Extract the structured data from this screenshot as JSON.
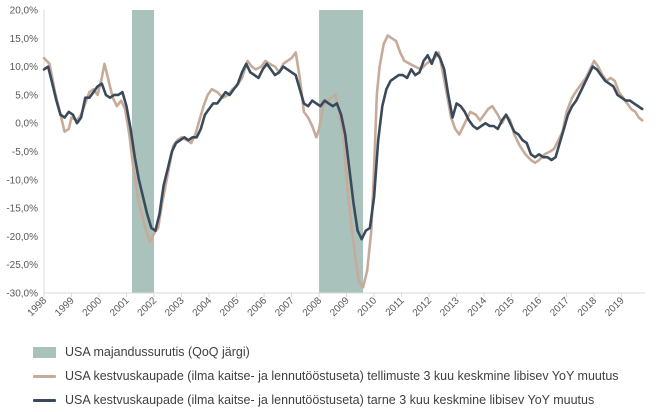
{
  "chart_data": {
    "type": "line",
    "title": "",
    "xlabel": "",
    "ylabel": "",
    "ylim": [
      -30,
      20
    ],
    "yticks": [
      "20,0%",
      "15,0%",
      "10,0%",
      "5,0%",
      "0,0%",
      "-5,0%",
      "-10,0%",
      "-15,0%",
      "-20,0%",
      "-25,0%",
      "-30,0%"
    ],
    "xticks": [
      "1998",
      "1999",
      "2000",
      "2001",
      "2002",
      "2003",
      "2004",
      "2005",
      "2006",
      "2007",
      "2008",
      "2009",
      "2010",
      "2011",
      "2012",
      "2013",
      "2014",
      "2015",
      "2016",
      "2017",
      "2018",
      "2019"
    ],
    "recessions": {
      "name": "USA majandussurutis (QoQ järgi)",
      "color": "#a9c2bc",
      "periods": [
        [
          2001.2,
          2002.0
        ],
        [
          2008.0,
          2009.6
        ]
      ]
    },
    "series": [
      {
        "name": "USA kestvuskaupade (ilma kaitse- ja lennutööstuseta) tellimuste 3 kuu keskmine libisev YoY muutus",
        "color": "#c7ab9a",
        "points": [
          [
            1998.0,
            11.5
          ],
          [
            1998.2,
            10.5
          ],
          [
            1998.4,
            5.5
          ],
          [
            1998.6,
            1.5
          ],
          [
            1998.75,
            -1.5
          ],
          [
            1998.9,
            -1.0
          ],
          [
            1999.0,
            1.0
          ],
          [
            1999.2,
            0.5
          ],
          [
            1999.35,
            1.5
          ],
          [
            1999.5,
            3.5
          ],
          [
            1999.65,
            5.5
          ],
          [
            1999.8,
            6.0
          ],
          [
            1999.95,
            5.0
          ],
          [
            2000.1,
            8.0
          ],
          [
            2000.2,
            10.5
          ],
          [
            2000.35,
            7.5
          ],
          [
            2000.5,
            4.5
          ],
          [
            2000.65,
            3.0
          ],
          [
            2000.8,
            4.0
          ],
          [
            2000.95,
            2.5
          ],
          [
            2001.1,
            -2.0
          ],
          [
            2001.25,
            -8.0
          ],
          [
            2001.45,
            -14.0
          ],
          [
            2001.65,
            -18.0
          ],
          [
            2001.85,
            -21.0
          ],
          [
            2002.0,
            -19.5
          ],
          [
            2002.15,
            -18.5
          ],
          [
            2002.3,
            -14.0
          ],
          [
            2002.5,
            -9.0
          ],
          [
            2002.7,
            -4.0
          ],
          [
            2002.85,
            -3.0
          ],
          [
            2003.0,
            -2.5
          ],
          [
            2003.2,
            -3.0
          ],
          [
            2003.35,
            -3.5
          ],
          [
            2003.5,
            -2.0
          ],
          [
            2003.65,
            0.5
          ],
          [
            2003.8,
            3.0
          ],
          [
            2003.95,
            5.0
          ],
          [
            2004.1,
            6.0
          ],
          [
            2004.3,
            5.5
          ],
          [
            2004.5,
            4.5
          ],
          [
            2004.7,
            5.0
          ],
          [
            2004.85,
            6.0
          ],
          [
            2005.0,
            6.5
          ],
          [
            2005.2,
            8.0
          ],
          [
            2005.4,
            11.0
          ],
          [
            2005.55,
            10.0
          ],
          [
            2005.7,
            9.5
          ],
          [
            2005.9,
            10.0
          ],
          [
            2006.05,
            11.0
          ],
          [
            2006.2,
            10.5
          ],
          [
            2006.4,
            10.0
          ],
          [
            2006.55,
            9.0
          ],
          [
            2006.7,
            10.5
          ],
          [
            2006.85,
            11.0
          ],
          [
            2007.0,
            11.5
          ],
          [
            2007.15,
            12.5
          ],
          [
            2007.3,
            8.0
          ],
          [
            2007.45,
            2.0
          ],
          [
            2007.6,
            1.0
          ],
          [
            2007.75,
            -0.5
          ],
          [
            2007.9,
            -2.5
          ],
          [
            2008.0,
            -1.0
          ],
          [
            2008.15,
            3.0
          ],
          [
            2008.3,
            4.0
          ],
          [
            2008.45,
            4.5
          ],
          [
            2008.6,
            5.0
          ],
          [
            2008.75,
            1.5
          ],
          [
            2008.9,
            -3.0
          ],
          [
            2009.0,
            -10.0
          ],
          [
            2009.15,
            -17.0
          ],
          [
            2009.3,
            -23.0
          ],
          [
            2009.45,
            -28.0
          ],
          [
            2009.6,
            -29.0
          ],
          [
            2009.75,
            -26.0
          ],
          [
            2009.9,
            -19.0
          ],
          [
            2010.0,
            -8.0
          ],
          [
            2010.1,
            5.0
          ],
          [
            2010.2,
            10.0
          ],
          [
            2010.35,
            14.0
          ],
          [
            2010.5,
            15.5
          ],
          [
            2010.65,
            15.0
          ],
          [
            2010.8,
            14.5
          ],
          [
            2010.95,
            12.5
          ],
          [
            2011.1,
            11.0
          ],
          [
            2011.3,
            10.5
          ],
          [
            2011.5,
            10.0
          ],
          [
            2011.7,
            9.5
          ],
          [
            2011.9,
            10.5
          ],
          [
            2012.05,
            11.0
          ],
          [
            2012.2,
            11.5
          ],
          [
            2012.35,
            12.5
          ],
          [
            2012.5,
            9.0
          ],
          [
            2012.65,
            5.0
          ],
          [
            2012.8,
            1.0
          ],
          [
            2012.95,
            -1.0
          ],
          [
            2013.1,
            -2.0
          ],
          [
            2013.3,
            0.0
          ],
          [
            2013.5,
            2.0
          ],
          [
            2013.7,
            1.5
          ],
          [
            2013.85,
            0.5
          ],
          [
            2014.0,
            1.5
          ],
          [
            2014.15,
            2.5
          ],
          [
            2014.3,
            3.0
          ],
          [
            2014.5,
            1.5
          ],
          [
            2014.65,
            0.0
          ],
          [
            2014.8,
            1.5
          ],
          [
            2014.95,
            0.5
          ],
          [
            2015.1,
            -2.0
          ],
          [
            2015.3,
            -4.0
          ],
          [
            2015.5,
            -5.5
          ],
          [
            2015.7,
            -6.5
          ],
          [
            2015.85,
            -7.0
          ],
          [
            2016.0,
            -6.5
          ],
          [
            2016.2,
            -5.5
          ],
          [
            2016.4,
            -5.0
          ],
          [
            2016.55,
            -4.5
          ],
          [
            2016.7,
            -3.0
          ],
          [
            2016.85,
            -1.5
          ],
          [
            2017.0,
            2.0
          ],
          [
            2017.2,
            4.5
          ],
          [
            2017.4,
            6.0
          ],
          [
            2017.55,
            7.0
          ],
          [
            2017.7,
            8.0
          ],
          [
            2017.85,
            9.5
          ],
          [
            2018.0,
            11.0
          ],
          [
            2018.15,
            10.0
          ],
          [
            2018.3,
            8.5
          ],
          [
            2018.45,
            7.5
          ],
          [
            2018.6,
            8.0
          ],
          [
            2018.75,
            7.5
          ],
          [
            2018.9,
            5.5
          ],
          [
            2019.05,
            4.5
          ],
          [
            2019.2,
            3.5
          ],
          [
            2019.35,
            2.5
          ],
          [
            2019.5,
            2.0
          ],
          [
            2019.62,
            1.0
          ],
          [
            2019.75,
            0.5
          ]
        ]
      },
      {
        "name": "USA kestvuskaupade (ilma kaitse- ja lennutööstuseta) tarne 3 kuu keskmine libisev YoY muutus",
        "color": "#3b4a5a",
        "points": [
          [
            1998.0,
            9.5
          ],
          [
            1998.15,
            10.0
          ],
          [
            1998.3,
            7.0
          ],
          [
            1998.45,
            4.0
          ],
          [
            1998.6,
            1.5
          ],
          [
            1998.75,
            1.0
          ],
          [
            1998.9,
            2.0
          ],
          [
            1999.05,
            1.5
          ],
          [
            1999.2,
            0.0
          ],
          [
            1999.35,
            1.0
          ],
          [
            1999.5,
            4.5
          ],
          [
            1999.65,
            4.5
          ],
          [
            1999.8,
            5.5
          ],
          [
            1999.95,
            6.5
          ],
          [
            2000.1,
            7.0
          ],
          [
            2000.25,
            5.0
          ],
          [
            2000.4,
            4.5
          ],
          [
            2000.55,
            5.0
          ],
          [
            2000.7,
            5.0
          ],
          [
            2000.85,
            5.5
          ],
          [
            2001.0,
            3.0
          ],
          [
            2001.15,
            -1.0
          ],
          [
            2001.3,
            -6.0
          ],
          [
            2001.45,
            -10.0
          ],
          [
            2001.6,
            -13.0
          ],
          [
            2001.75,
            -16.0
          ],
          [
            2001.9,
            -18.5
          ],
          [
            2002.05,
            -19.0
          ],
          [
            2002.2,
            -16.0
          ],
          [
            2002.35,
            -11.0
          ],
          [
            2002.5,
            -8.0
          ],
          [
            2002.65,
            -5.0
          ],
          [
            2002.8,
            -3.5
          ],
          [
            2002.95,
            -3.0
          ],
          [
            2003.1,
            -2.5
          ],
          [
            2003.25,
            -3.0
          ],
          [
            2003.4,
            -2.5
          ],
          [
            2003.55,
            -2.5
          ],
          [
            2003.7,
            -1.0
          ],
          [
            2003.85,
            1.5
          ],
          [
            2004.0,
            2.5
          ],
          [
            2004.15,
            3.5
          ],
          [
            2004.3,
            3.5
          ],
          [
            2004.45,
            4.5
          ],
          [
            2004.6,
            5.5
          ],
          [
            2004.75,
            5.0
          ],
          [
            2004.9,
            6.0
          ],
          [
            2005.05,
            7.0
          ],
          [
            2005.2,
            9.0
          ],
          [
            2005.35,
            10.5
          ],
          [
            2005.5,
            9.0
          ],
          [
            2005.65,
            8.5
          ],
          [
            2005.8,
            8.0
          ],
          [
            2005.95,
            9.5
          ],
          [
            2006.1,
            10.5
          ],
          [
            2006.25,
            9.5
          ],
          [
            2006.4,
            8.5
          ],
          [
            2006.55,
            9.0
          ],
          [
            2006.7,
            10.0
          ],
          [
            2006.85,
            9.5
          ],
          [
            2007.0,
            9.0
          ],
          [
            2007.15,
            8.5
          ],
          [
            2007.3,
            6.0
          ],
          [
            2007.45,
            3.5
          ],
          [
            2007.6,
            3.0
          ],
          [
            2007.75,
            4.0
          ],
          [
            2007.9,
            3.5
          ],
          [
            2008.05,
            3.0
          ],
          [
            2008.2,
            4.0
          ],
          [
            2008.35,
            3.5
          ],
          [
            2008.5,
            3.0
          ],
          [
            2008.65,
            3.5
          ],
          [
            2008.8,
            1.5
          ],
          [
            2008.95,
            -2.0
          ],
          [
            2009.1,
            -8.0
          ],
          [
            2009.25,
            -14.0
          ],
          [
            2009.4,
            -19.0
          ],
          [
            2009.55,
            -20.5
          ],
          [
            2009.7,
            -19.0
          ],
          [
            2009.85,
            -18.5
          ],
          [
            2010.0,
            -13.0
          ],
          [
            2010.15,
            -3.0
          ],
          [
            2010.3,
            3.0
          ],
          [
            2010.45,
            6.0
          ],
          [
            2010.6,
            7.5
          ],
          [
            2010.75,
            8.0
          ],
          [
            2010.9,
            8.5
          ],
          [
            2011.05,
            8.5
          ],
          [
            2011.2,
            8.0
          ],
          [
            2011.35,
            9.5
          ],
          [
            2011.5,
            8.5
          ],
          [
            2011.65,
            9.0
          ],
          [
            2011.8,
            11.0
          ],
          [
            2011.95,
            12.0
          ],
          [
            2012.1,
            10.5
          ],
          [
            2012.25,
            12.5
          ],
          [
            2012.4,
            11.5
          ],
          [
            2012.55,
            9.5
          ],
          [
            2012.7,
            5.0
          ],
          [
            2012.85,
            1.0
          ],
          [
            2013.0,
            3.5
          ],
          [
            2013.15,
            3.0
          ],
          [
            2013.3,
            2.0
          ],
          [
            2013.45,
            0.5
          ],
          [
            2013.6,
            -0.5
          ],
          [
            2013.75,
            -1.0
          ],
          [
            2013.9,
            -0.5
          ],
          [
            2014.05,
            0.0
          ],
          [
            2014.2,
            -0.5
          ],
          [
            2014.35,
            -0.5
          ],
          [
            2014.5,
            -1.0
          ],
          [
            2014.65,
            0.5
          ],
          [
            2014.8,
            1.5
          ],
          [
            2014.95,
            0.0
          ],
          [
            2015.1,
            -1.5
          ],
          [
            2015.25,
            -2.0
          ],
          [
            2015.4,
            -3.0
          ],
          [
            2015.55,
            -3.5
          ],
          [
            2015.7,
            -5.5
          ],
          [
            2015.85,
            -6.0
          ],
          [
            2016.0,
            -5.5
          ],
          [
            2016.15,
            -6.0
          ],
          [
            2016.3,
            -6.0
          ],
          [
            2016.45,
            -6.5
          ],
          [
            2016.6,
            -6.0
          ],
          [
            2016.75,
            -3.5
          ],
          [
            2016.9,
            -1.0
          ],
          [
            2017.05,
            1.5
          ],
          [
            2017.2,
            3.0
          ],
          [
            2017.35,
            4.0
          ],
          [
            2017.5,
            5.5
          ],
          [
            2017.65,
            7.0
          ],
          [
            2017.8,
            8.5
          ],
          [
            2017.95,
            10.0
          ],
          [
            2018.1,
            9.5
          ],
          [
            2018.25,
            8.5
          ],
          [
            2018.4,
            7.5
          ],
          [
            2018.55,
            7.0
          ],
          [
            2018.7,
            6.5
          ],
          [
            2018.85,
            5.0
          ],
          [
            2019.0,
            4.5
          ],
          [
            2019.15,
            4.0
          ],
          [
            2019.3,
            4.0
          ],
          [
            2019.45,
            3.5
          ],
          [
            2019.6,
            3.0
          ],
          [
            2019.75,
            2.5
          ]
        ]
      }
    ]
  }
}
